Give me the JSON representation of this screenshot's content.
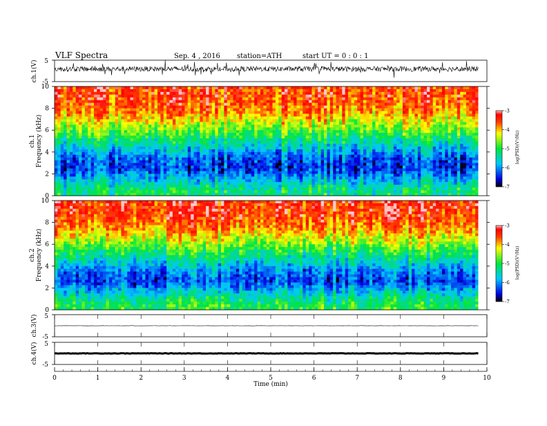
{
  "header": {
    "title": "VLF Spectra",
    "date": "Sep. 4 , 2016",
    "station": "station=ATH",
    "start_ut": "start UT = 0 : 0 : 1"
  },
  "chart_data": [
    {
      "type": "line",
      "panel": "ch1-waveform",
      "ylabel": "ch.1(V)",
      "yticks": [
        "5",
        "-5"
      ],
      "ylim": [
        -5,
        5
      ],
      "description_note": "",
      "x_range_min": [
        0,
        9.8
      ],
      "level": 0.9,
      "amplitude": 1.2,
      "color": "#000000"
    },
    {
      "type": "heatmap",
      "panel": "ch1-spectrogram",
      "ylabel": "Frequency (kHz)",
      "channel": "ch.1",
      "yticks": [
        "0",
        "2",
        "4",
        "6",
        "8",
        "10"
      ],
      "ylim": [
        0,
        10
      ],
      "x_range_min": [
        0,
        9.8
      ],
      "colorbar": {
        "ticks": [
          "-3",
          "-4",
          "-5",
          "-6",
          "-7"
        ],
        "label": "log(PSD)(V²/Hz)",
        "range": [
          -7,
          -3
        ]
      },
      "profile": [
        {
          "freq_khz": 0.5,
          "log_psd": -5.2
        },
        {
          "freq_khz": 1.5,
          "log_psd": -5.8
        },
        {
          "freq_khz": 2.5,
          "log_psd": -6.4
        },
        {
          "freq_khz": 3.5,
          "log_psd": -6.2
        },
        {
          "freq_khz": 4.5,
          "log_psd": -5.6
        },
        {
          "freq_khz": 5.5,
          "log_psd": -5.0
        },
        {
          "freq_khz": 6.5,
          "log_psd": -4.4
        },
        {
          "freq_khz": 7.5,
          "log_psd": -3.9
        },
        {
          "freq_khz": 8.5,
          "log_psd": -3.6
        },
        {
          "freq_khz": 9.5,
          "log_psd": -3.5
        }
      ]
    },
    {
      "type": "heatmap",
      "panel": "ch2-spectrogram",
      "ylabel": "Frequency (kHz)",
      "channel": "ch.2",
      "yticks": [
        "0",
        "2",
        "4",
        "6",
        "8",
        "10"
      ],
      "ylim": [
        0,
        10
      ],
      "x_range_min": [
        0,
        9.8
      ],
      "colorbar": {
        "ticks": [
          "-3",
          "-4",
          "-5",
          "-6",
          "-7"
        ],
        "label": "log(PSD)(V²/Hz)",
        "range": [
          -7,
          -3
        ]
      },
      "profile": [
        {
          "freq_khz": 0.5,
          "log_psd": -5.0
        },
        {
          "freq_khz": 1.5,
          "log_psd": -5.6
        },
        {
          "freq_khz": 2.5,
          "log_psd": -6.3
        },
        {
          "freq_khz": 3.5,
          "log_psd": -6.1
        },
        {
          "freq_khz": 4.5,
          "log_psd": -5.5
        },
        {
          "freq_khz": 5.5,
          "log_psd": -4.9
        },
        {
          "freq_khz": 6.5,
          "log_psd": -4.3
        },
        {
          "freq_khz": 7.5,
          "log_psd": -3.8
        },
        {
          "freq_khz": 8.5,
          "log_psd": -3.5
        },
        {
          "freq_khz": 9.5,
          "log_psd": -3.4
        }
      ]
    },
    {
      "type": "line",
      "panel": "ch3-waveform",
      "ylabel": "ch.3(V)",
      "yticks": [
        "5",
        "-5"
      ],
      "ylim": [
        -5,
        5
      ],
      "x_range_min": [
        0,
        9.8
      ],
      "level": 0,
      "amplitude": 0.05,
      "color": "#000000"
    },
    {
      "type": "line",
      "panel": "ch4-waveform",
      "ylabel": "ch.4(V)",
      "yticks": [
        "5",
        "-5"
      ],
      "ylim": [
        -5,
        5
      ],
      "x_range_min": [
        0,
        9.8
      ],
      "level": 0,
      "amplitude": 0.1,
      "color": "#000000"
    }
  ],
  "xaxis": {
    "label": "Time (min)",
    "ticks": [
      "0",
      "1",
      "2",
      "3",
      "4",
      "5",
      "6",
      "7",
      "8",
      "9",
      "10"
    ],
    "xlim": [
      0,
      10
    ]
  },
  "colors": {
    "high": "#ff0000",
    "mid_high": "#ffff00",
    "mid": "#00ff00",
    "mid_low": "#00ffff",
    "low": "#0000ff",
    "lowest": "#000000"
  }
}
